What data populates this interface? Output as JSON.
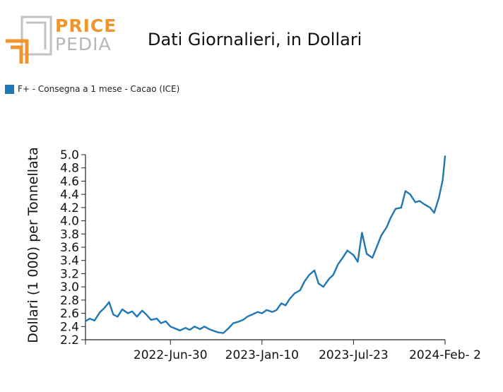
{
  "header": {
    "logo_top": "PRICE",
    "logo_bottom": "PEDIA",
    "title": "Dati Giornalieri, in Dollari"
  },
  "colors": {
    "series": "#1f77b4",
    "logo_orange": "#f0952b",
    "logo_grey": "#b7b7b7"
  },
  "chart_data": {
    "type": "line",
    "title": "Dati Giornalieri, in Dollari",
    "xlabel": "",
    "ylabel": "Dollari (1 000) per Tonnellata",
    "ylim": [
      2.2,
      5.0
    ],
    "xlim": [
      "2022-01-01",
      "2024-02-02"
    ],
    "yticks": [
      "2.2",
      "2.4",
      "2.6",
      "2.8",
      "3.0",
      "3.2",
      "3.4",
      "3.6",
      "3.8",
      "4.0",
      "4.2",
      "4.4",
      "4.6",
      "4.8",
      "5.0"
    ],
    "xticks": [
      {
        "date": "2022-06-30",
        "label": "2022-Jun-30"
      },
      {
        "date": "2023-01-10",
        "label": "2023-Jan-10"
      },
      {
        "date": "2023-07-23",
        "label": "2023-Jul-23"
      },
      {
        "date": "2024-02-02",
        "label": "2024-Feb- 2"
      }
    ],
    "grid": false,
    "legend_position": "top-left",
    "series": [
      {
        "name": "F+ - Consegna a 1 mese - Cacao (ICE)",
        "x": [
          "2022-01-01",
          "2022-01-10",
          "2022-01-20",
          "2022-02-01",
          "2022-02-10",
          "2022-02-20",
          "2022-03-01",
          "2022-03-10",
          "2022-03-20",
          "2022-04-01",
          "2022-04-10",
          "2022-04-20",
          "2022-05-01",
          "2022-05-10",
          "2022-05-20",
          "2022-06-01",
          "2022-06-10",
          "2022-06-20",
          "2022-06-30",
          "2022-07-10",
          "2022-07-20",
          "2022-08-01",
          "2022-08-10",
          "2022-08-20",
          "2022-09-01",
          "2022-09-10",
          "2022-09-20",
          "2022-10-01",
          "2022-10-10",
          "2022-10-20",
          "2022-11-01",
          "2022-11-10",
          "2022-11-20",
          "2022-12-01",
          "2022-12-10",
          "2022-12-20",
          "2023-01-01",
          "2023-01-10",
          "2023-01-20",
          "2023-02-01",
          "2023-02-10",
          "2023-02-20",
          "2023-03-01",
          "2023-03-10",
          "2023-03-20",
          "2023-04-01",
          "2023-04-10",
          "2023-04-20",
          "2023-05-01",
          "2023-05-10",
          "2023-05-20",
          "2023-06-01",
          "2023-06-10",
          "2023-06-20",
          "2023-07-01",
          "2023-07-10",
          "2023-07-23",
          "2023-08-01",
          "2023-08-10",
          "2023-08-20",
          "2023-09-01",
          "2023-09-10",
          "2023-09-20",
          "2023-10-01",
          "2023-10-10",
          "2023-10-20",
          "2023-11-01",
          "2023-11-10",
          "2023-11-20",
          "2023-12-01",
          "2023-12-10",
          "2023-12-20",
          "2024-01-01",
          "2024-01-10",
          "2024-01-20",
          "2024-01-28",
          "2024-02-02"
        ],
        "values": [
          2.48,
          2.52,
          2.49,
          2.62,
          2.68,
          2.77,
          2.58,
          2.55,
          2.66,
          2.6,
          2.63,
          2.55,
          2.64,
          2.58,
          2.5,
          2.52,
          2.45,
          2.48,
          2.4,
          2.37,
          2.34,
          2.38,
          2.35,
          2.4,
          2.36,
          2.4,
          2.36,
          2.33,
          2.31,
          2.3,
          2.38,
          2.45,
          2.47,
          2.5,
          2.55,
          2.58,
          2.62,
          2.6,
          2.65,
          2.62,
          2.65,
          2.75,
          2.72,
          2.82,
          2.9,
          2.95,
          3.08,
          3.18,
          3.25,
          3.05,
          3.0,
          3.12,
          3.18,
          3.34,
          3.45,
          3.55,
          3.48,
          3.38,
          3.82,
          3.5,
          3.44,
          3.6,
          3.78,
          3.9,
          4.05,
          4.18,
          4.2,
          4.45,
          4.4,
          4.28,
          4.3,
          4.25,
          4.2,
          4.12,
          4.35,
          4.62,
          4.98
        ]
      }
    ]
  }
}
